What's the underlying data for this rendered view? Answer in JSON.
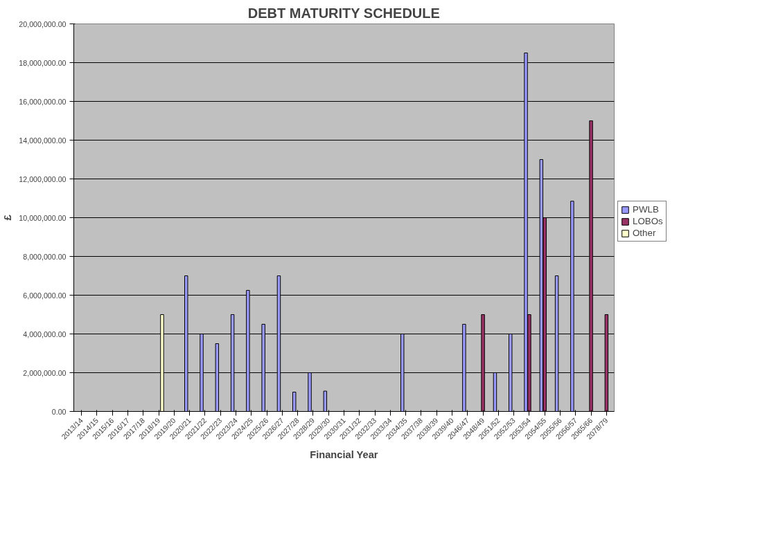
{
  "chart_data": {
    "type": "bar",
    "title": "DEBT MATURITY SCHEDULE",
    "xlabel": "Financial Year",
    "ylabel": "£",
    "categories": [
      "2013/14",
      "2014/15",
      "2015/16",
      "2016/17",
      "2017/18",
      "2018/19",
      "2019/20",
      "2020/21",
      "2021/22",
      "2022/23",
      "2023/24",
      "2024/25",
      "2025/26",
      "2026/27",
      "2027/28",
      "2028/29",
      "2029/30",
      "2030/31",
      "2031/32",
      "2032/33",
      "2033/34",
      "2034/35",
      "2037/38",
      "2038/39",
      "2039/40",
      "2046/47",
      "2048/49",
      "2051/52",
      "2052/53",
      "2053/54",
      "2054/55",
      "2055/56",
      "2056/57",
      "2065/66",
      "2078/79"
    ],
    "series": [
      {
        "name": "PWLB",
        "color": "#9999ff",
        "values": [
          null,
          null,
          null,
          null,
          null,
          null,
          null,
          7000000,
          4000000,
          3500000,
          5000000,
          6250000,
          4500000,
          7000000,
          1000000,
          2000000,
          1050000,
          null,
          null,
          null,
          null,
          4000000,
          null,
          null,
          null,
          4500000,
          null,
          2000000,
          4000000,
          18500000,
          13000000,
          7000000,
          10850000,
          null,
          null
        ]
      },
      {
        "name": "LOBOs",
        "color": "#993366",
        "values": [
          null,
          null,
          null,
          null,
          null,
          null,
          null,
          null,
          null,
          null,
          null,
          null,
          null,
          null,
          null,
          null,
          null,
          null,
          null,
          null,
          null,
          null,
          null,
          null,
          null,
          null,
          5000000,
          null,
          null,
          5000000,
          10000000,
          null,
          null,
          15000000,
          5000000
        ]
      },
      {
        "name": "Other",
        "color": "#ffffcc",
        "values": [
          null,
          null,
          null,
          null,
          null,
          5000000,
          null,
          null,
          null,
          null,
          null,
          null,
          null,
          null,
          null,
          null,
          null,
          null,
          null,
          null,
          null,
          null,
          null,
          null,
          null,
          null,
          null,
          null,
          null,
          null,
          null,
          null,
          null,
          null,
          null
        ]
      }
    ],
    "ylim": [
      0,
      20000000
    ],
    "yticks": [
      {
        "value": 0,
        "label": "0.00"
      },
      {
        "value": 2000000,
        "label": "2,000,000.00"
      },
      {
        "value": 4000000,
        "label": "4,000,000.00"
      },
      {
        "value": 6000000,
        "label": "6,000,000.00"
      },
      {
        "value": 8000000,
        "label": "8,000,000.00"
      },
      {
        "value": 10000000,
        "label": "10,000,000.00"
      },
      {
        "value": 12000000,
        "label": "12,000,000.00"
      },
      {
        "value": 14000000,
        "label": "14,000,000.00"
      },
      {
        "value": 16000000,
        "label": "16,000,000.00"
      },
      {
        "value": 18000000,
        "label": "18,000,000.00"
      },
      {
        "value": 20000000,
        "label": "20,000,000.00"
      }
    ],
    "grid": "y",
    "legend": "right"
  }
}
